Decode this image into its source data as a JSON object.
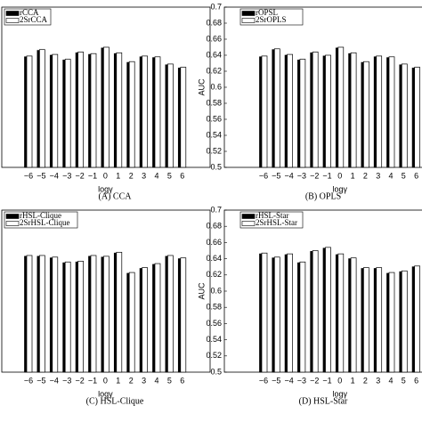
{
  "chart_data": [
    {
      "type": "bar",
      "caption": "(A) CCA",
      "xlabel": "logγ",
      "categories": [
        "−6",
        "−5",
        "−4",
        "−3",
        "−2",
        "−1",
        "0",
        "1",
        "2",
        "3",
        "4",
        "5",
        "6"
      ],
      "series": [
        {
          "name": "rCCA",
          "color": "#000000",
          "values": [
            0.638,
            0.646,
            0.64,
            0.634,
            0.643,
            0.641,
            0.649,
            0.642,
            0.631,
            0.638,
            0.637,
            0.628,
            0.624
          ]
        },
        {
          "name": "2SrCCA",
          "color": "#ffffff",
          "values": [
            0.639,
            0.647,
            0.641,
            0.635,
            0.644,
            0.642,
            0.65,
            0.643,
            0.632,
            0.639,
            0.638,
            0.629,
            0.625
          ]
        }
      ],
      "ylim": [
        0.5,
        0.7
      ]
    },
    {
      "type": "bar",
      "caption": "(B) OPLS",
      "xlabel": "logγ",
      "ylabel": "AUC",
      "categories": [
        "−6",
        "−5",
        "−4",
        "−3",
        "−2",
        "−1",
        "0",
        "1",
        "2",
        "3",
        "4",
        "5",
        "6"
      ],
      "series": [
        {
          "name": "rOPSL",
          "color": "#000000",
          "values": [
            0.638,
            0.647,
            0.64,
            0.634,
            0.643,
            0.639,
            0.649,
            0.642,
            0.631,
            0.638,
            0.637,
            0.628,
            0.624
          ]
        },
        {
          "name": "2SrOPLS",
          "color": "#ffffff",
          "values": [
            0.639,
            0.648,
            0.641,
            0.635,
            0.644,
            0.64,
            0.65,
            0.643,
            0.632,
            0.639,
            0.638,
            0.629,
            0.625
          ]
        }
      ],
      "ylim": [
        0.5,
        0.7
      ],
      "yticks": [
        0.5,
        0.52,
        0.54,
        0.56,
        0.58,
        0.6,
        0.62,
        0.64,
        0.66,
        0.68,
        0.7
      ]
    },
    {
      "type": "bar",
      "caption": "(C) HSL-Clique",
      "xlabel": "logγ",
      "categories": [
        "−6",
        "−5",
        "−4",
        "−3",
        "−2",
        "−1",
        "0",
        "1",
        "2",
        "3",
        "4",
        "5",
        "6"
      ],
      "series": [
        {
          "name": "rHSL-Clique",
          "color": "#000000",
          "values": [
            0.643,
            0.643,
            0.641,
            0.635,
            0.636,
            0.643,
            0.642,
            0.647,
            0.622,
            0.628,
            0.633,
            0.643,
            0.64
          ]
        },
        {
          "name": "2SrHSL-Clique",
          "color": "#ffffff",
          "values": [
            0.644,
            0.644,
            0.642,
            0.636,
            0.637,
            0.644,
            0.643,
            0.648,
            0.623,
            0.629,
            0.634,
            0.644,
            0.641
          ]
        }
      ],
      "ylim": [
        0.5,
        0.7
      ]
    },
    {
      "type": "bar",
      "caption": "(D) HSL-Star",
      "xlabel": "logγ",
      "ylabel": "AUC",
      "categories": [
        "−6",
        "−5",
        "−4",
        "−3",
        "−2",
        "−1",
        "0",
        "1",
        "2",
        "3",
        "4",
        "5",
        "6"
      ],
      "series": [
        {
          "name": "rHSL-Star",
          "color": "#000000",
          "values": [
            0.646,
            0.641,
            0.645,
            0.635,
            0.649,
            0.653,
            0.645,
            0.64,
            0.628,
            0.628,
            0.622,
            0.624,
            0.63
          ]
        },
        {
          "name": "2SrHSL-Star",
          "color": "#ffffff",
          "values": [
            0.647,
            0.642,
            0.646,
            0.636,
            0.65,
            0.654,
            0.646,
            0.641,
            0.629,
            0.629,
            0.623,
            0.625,
            0.631
          ]
        }
      ],
      "ylim": [
        0.5,
        0.7
      ],
      "yticks": [
        0.5,
        0.52,
        0.54,
        0.56,
        0.58,
        0.6,
        0.62,
        0.64,
        0.66,
        0.68,
        0.7
      ]
    }
  ]
}
